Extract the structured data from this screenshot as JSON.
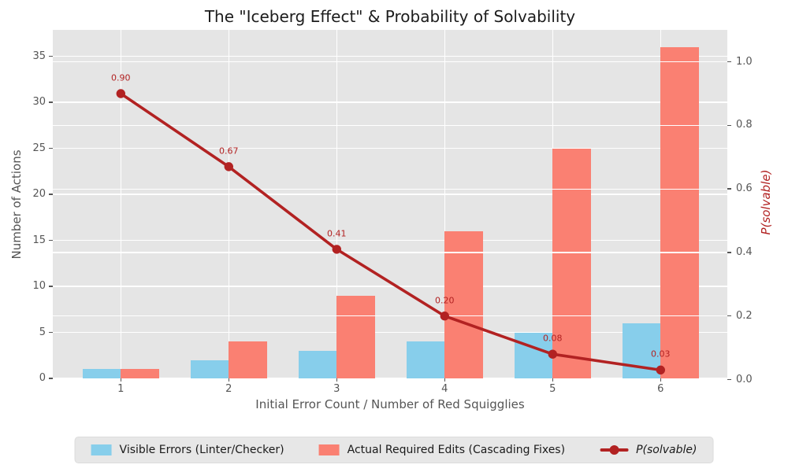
{
  "chart_data": {
    "type": "bar",
    "title": "The \"Iceberg Effect\" & Probability of Solvability",
    "xlabel": "Initial Error Count / Number of Red Squigglies",
    "ylabel_left": "Number of Actions",
    "ylabel_right": "P(solvable)",
    "categories": [
      "1",
      "2",
      "3",
      "4",
      "5",
      "6"
    ],
    "y_left_ticks": [
      0,
      5,
      10,
      15,
      20,
      25,
      30,
      35
    ],
    "y_right_ticks": [
      "0.0",
      "0.2",
      "0.4",
      "0.6",
      "0.8",
      "1.0"
    ],
    "ylim_left": [
      0,
      37.9
    ],
    "ylim_right": [
      0,
      1.09
    ],
    "grid": true,
    "legend_position": "bottom-center",
    "series": [
      {
        "name": "Visible Errors (Linter/Checker)",
        "type": "bar",
        "axis": "left",
        "color": "#87ceeb",
        "values": [
          1,
          2,
          3,
          4,
          5,
          6
        ]
      },
      {
        "name": "Actual Required Edits (Cascading Fixes)",
        "type": "bar",
        "axis": "left",
        "color": "#fa8072",
        "values": [
          1,
          4,
          9,
          16,
          25,
          36
        ]
      },
      {
        "name": "P(solvable)",
        "type": "line",
        "axis": "right",
        "color": "#b22222",
        "values": [
          0.9,
          0.67,
          0.41,
          0.2,
          0.08,
          0.03
        ],
        "point_labels": [
          "0.90",
          "0.67",
          "0.41",
          "0.20",
          "0.08",
          "0.03"
        ]
      }
    ],
    "colors": {
      "plot_background": "#e5e5e5",
      "figure_background": "#ffffff",
      "gridline": "#ffffff",
      "tick_text": "#555555",
      "title_text": "#1c1c1c"
    }
  }
}
